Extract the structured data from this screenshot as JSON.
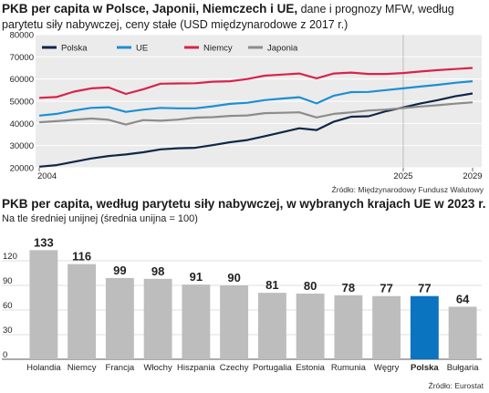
{
  "chart1": {
    "title_bold": "PKB per capita w Polsce, Japonii, Niemczech i UE,",
    "title_rest": " dane i prognozy MFW, według parytetu siły nabywczej, ceny stałe (USD międzynarodowe z 2017 r.)",
    "source": "Źródło: Międzynarodowy Fundusz Walutowy"
  },
  "chart2": {
    "title": "PKB per capita, według parytetu siły nabywczej, w wybranych krajach UE w 2023 r.",
    "subtitle": "Na tle średniej unijnej (średnia unijna = 100)",
    "source": "Źródło: Eurostat"
  },
  "chart_data": [
    {
      "type": "line",
      "title": "PKB per capita w Polsce, Japonii, Niemczech i UE",
      "x": [
        2004,
        2005,
        2006,
        2007,
        2008,
        2009,
        2010,
        2011,
        2012,
        2013,
        2014,
        2015,
        2016,
        2017,
        2018,
        2019,
        2020,
        2021,
        2022,
        2023,
        2024,
        2025,
        2026,
        2027,
        2028,
        2029
      ],
      "x_tick_labels": [
        "2004",
        "2025",
        "2029"
      ],
      "forecast_from": 2025,
      "ylim": [
        20000,
        80000
      ],
      "y_ticks": [
        20000,
        30000,
        40000,
        50000,
        60000,
        70000,
        80000
      ],
      "legend_position": "top",
      "grid": true,
      "series": [
        {
          "name": "Polska",
          "color": "#0f2747",
          "values": [
            20500,
            21200,
            22700,
            24200,
            25300,
            26000,
            27000,
            28300,
            28800,
            29000,
            30200,
            31500,
            32500,
            34200,
            36000,
            37800,
            37000,
            40800,
            43000,
            43200,
            45500,
            47200,
            49000,
            50500,
            52200,
            53500
          ]
        },
        {
          "name": "UE",
          "color": "#1d8fd1",
          "values": [
            43500,
            44300,
            45800,
            47000,
            47300,
            45200,
            46200,
            47000,
            46800,
            46800,
            47700,
            48800,
            49300,
            50500,
            51200,
            51800,
            49000,
            52500,
            54100,
            54200,
            55000,
            55800,
            56600,
            57400,
            58300,
            59000
          ]
        },
        {
          "name": "Niemcy",
          "color": "#d8244a",
          "values": [
            51500,
            51900,
            54300,
            55800,
            56200,
            53300,
            55400,
            57900,
            58000,
            58100,
            58800,
            59000,
            60000,
            61500,
            62000,
            62500,
            60300,
            62500,
            62900,
            62300,
            62300,
            62700,
            63400,
            64000,
            64500,
            65000
          ]
        },
        {
          "name": "Japonia",
          "color": "#8c8c8c",
          "values": [
            40500,
            41000,
            41600,
            42200,
            41600,
            39500,
            41500,
            41200,
            41700,
            42600,
            42800,
            43400,
            43600,
            44600,
            44800,
            45000,
            42700,
            44300,
            45000,
            45800,
            46200,
            46900,
            47600,
            48200,
            48900,
            49500
          ]
        }
      ]
    },
    {
      "type": "bar",
      "title": "PKB per capita, według parytetu siły nabywczej, w wybranych krajach UE w 2023 r.",
      "categories": [
        "Holandia",
        "Niemcy",
        "Francja",
        "Włochy",
        "Hiszpania",
        "Czechy",
        "Portugalia",
        "Estonia",
        "Rumunia",
        "Węgry",
        "Polska",
        "Bułgaria"
      ],
      "values": [
        133,
        116,
        99,
        98,
        91,
        90,
        81,
        80,
        78,
        77,
        77,
        64
      ],
      "highlight": "Polska",
      "colors": {
        "bar": "#bdbdbd",
        "highlight": "#0a74c0"
      },
      "ylim": [
        0,
        140
      ],
      "y_ticks": [
        0,
        30,
        60,
        90,
        120
      ],
      "grid": true
    }
  ]
}
